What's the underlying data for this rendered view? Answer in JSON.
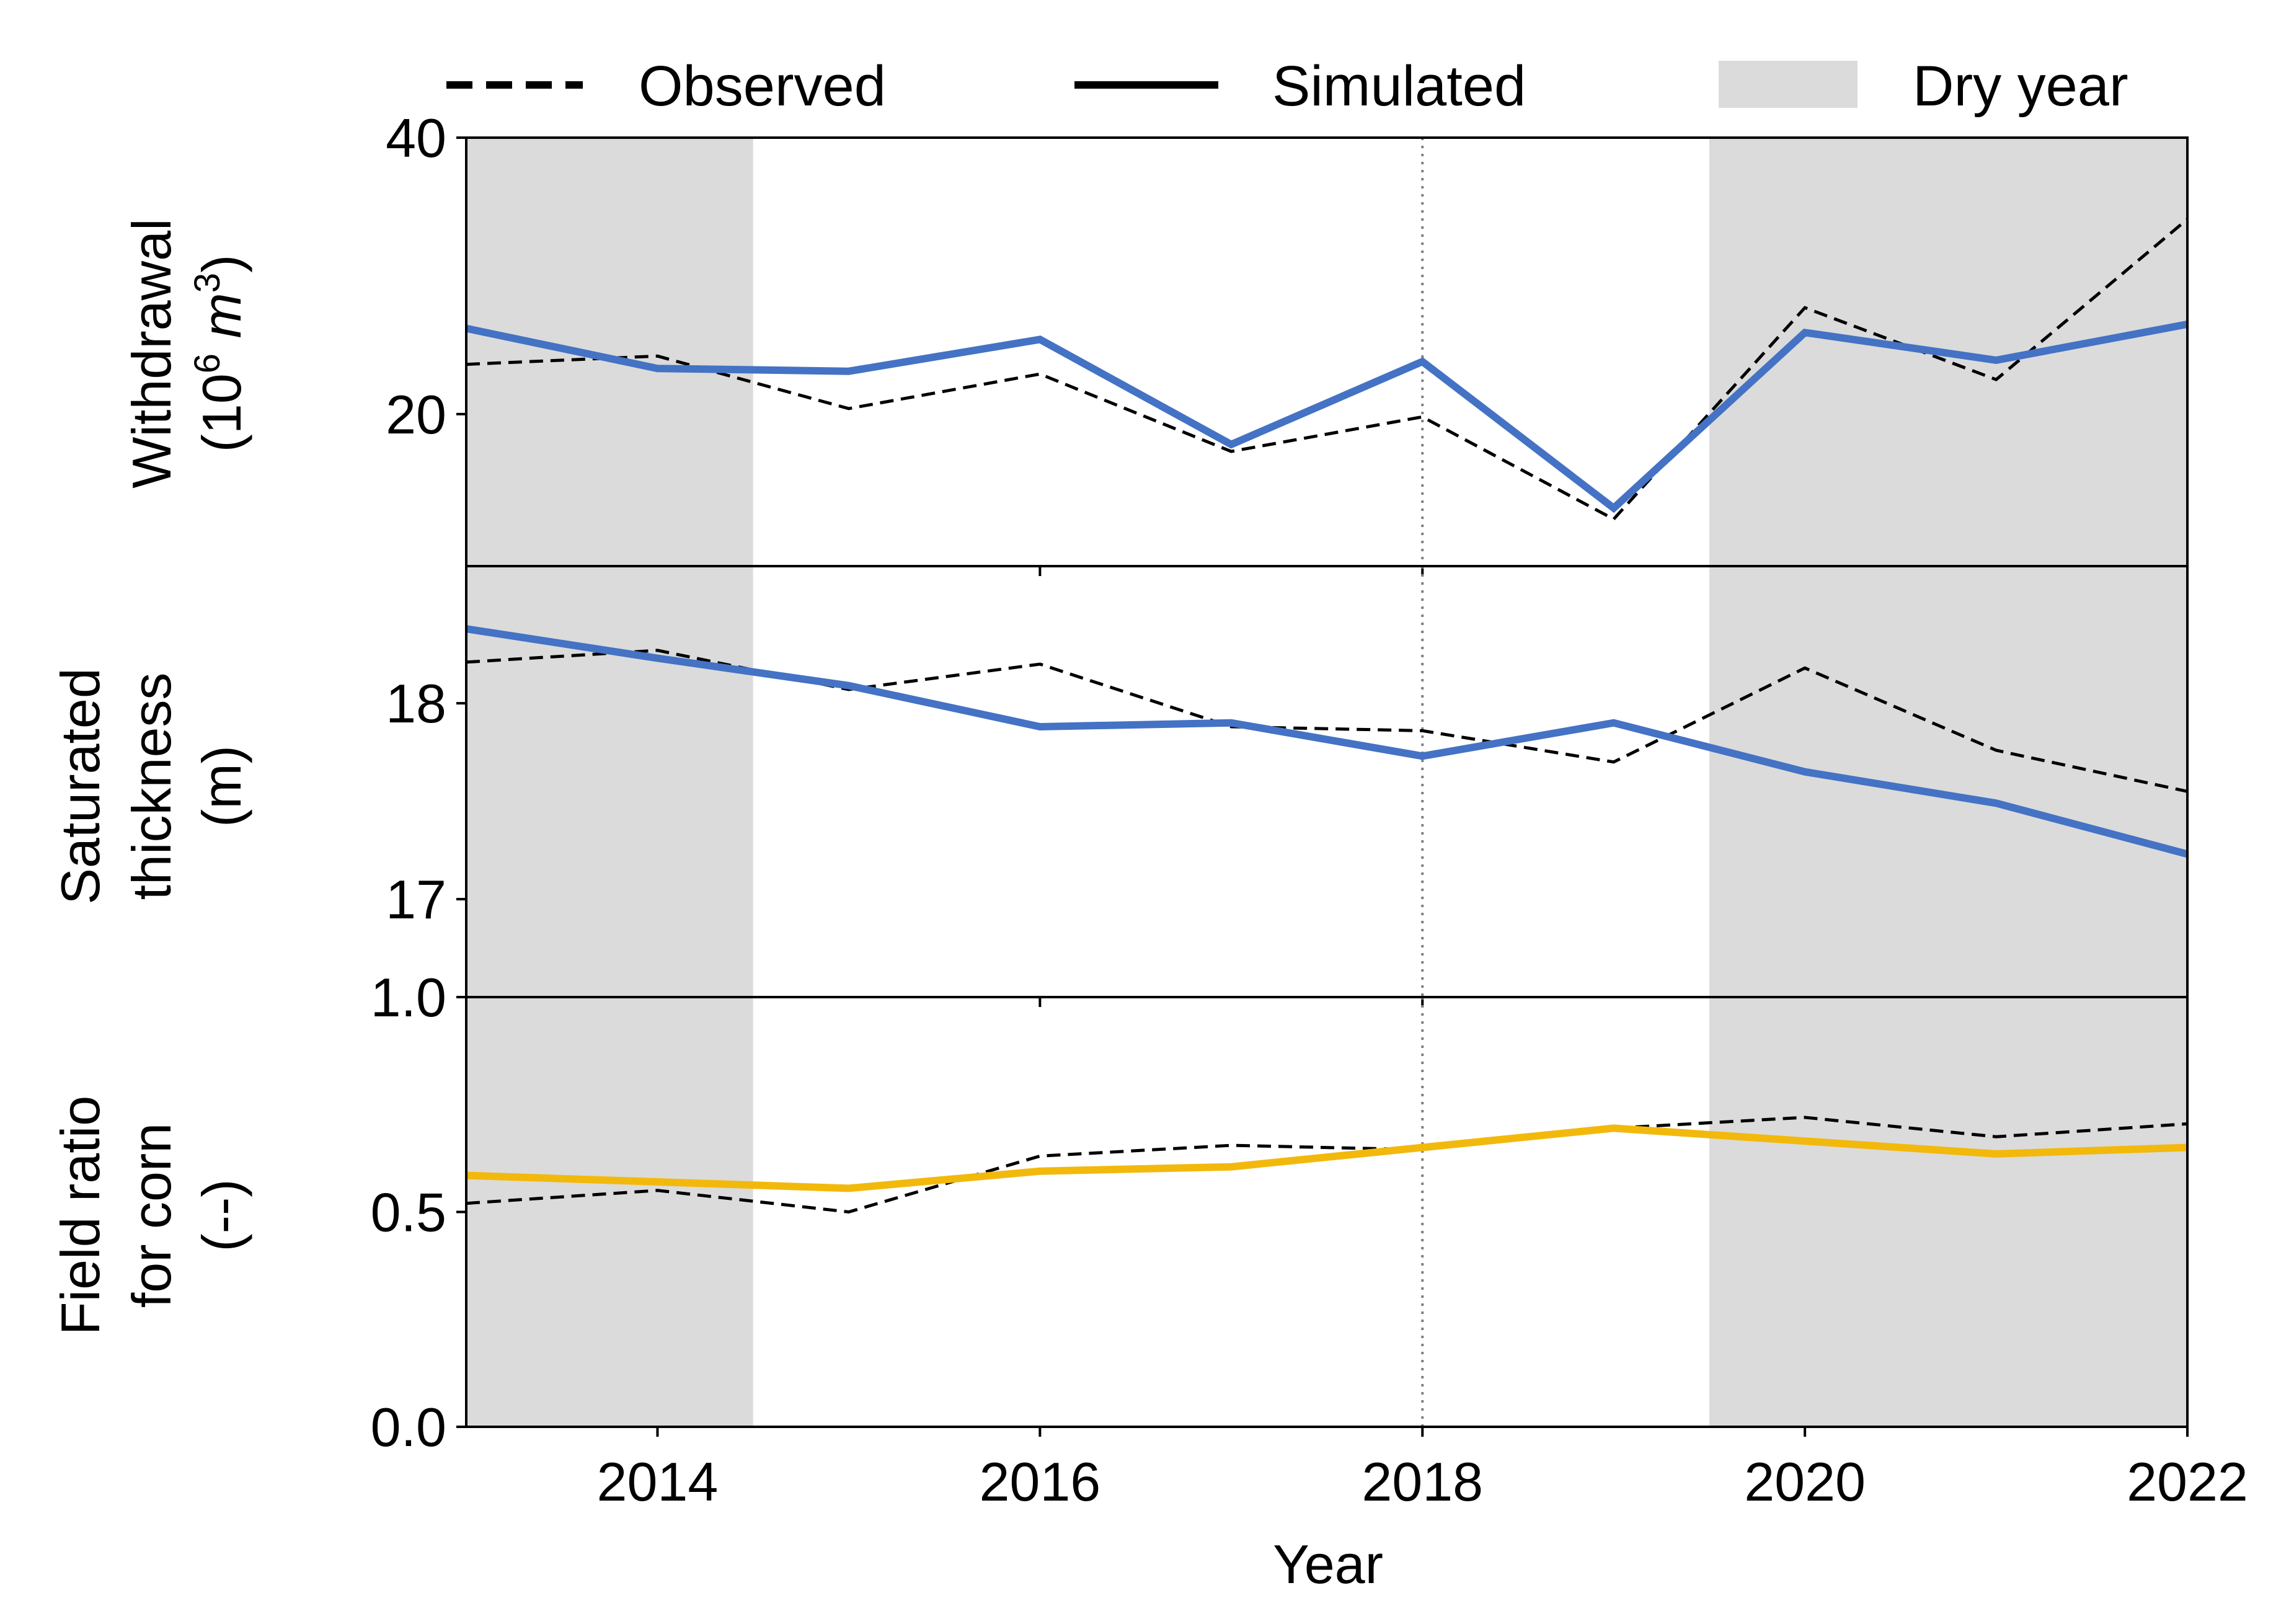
{
  "legend": {
    "observed": "Observed",
    "simulated": "Simulated",
    "dry_year": "Dry year"
  },
  "x_axis": {
    "label": "Year",
    "range": [
      2013,
      2022
    ],
    "ticks": [
      2014,
      2016,
      2018,
      2020,
      2022
    ]
  },
  "reference_line_year": 2018,
  "dry_periods": [
    [
      2013,
      2014.5
    ],
    [
      2019.5,
      2022
    ]
  ],
  "colors": {
    "dry_shade": "#dbdbdb",
    "simulated_blue": "#4472c4",
    "simulated_gold": "#f2b90c",
    "observed": "#000000",
    "reference_line": "#808080"
  },
  "chart_data": [
    {
      "type": "line",
      "ylabel_line1": "Withdrawal",
      "ylabel_line2_prefix": "(10",
      "ylabel_sup1": "6",
      "ylabel_unit": "m",
      "ylabel_sup2": "3",
      "ylabel_close": ")",
      "ylim": [
        9,
        40
      ],
      "yticks": [
        20,
        40
      ],
      "x": [
        2013,
        2014,
        2015,
        2016,
        2017,
        2018,
        2019,
        2020,
        2021,
        2022
      ],
      "series": [
        {
          "name": "Observed",
          "style": "dashed",
          "values": [
            23.6,
            24.2,
            20.4,
            22.9,
            17.3,
            19.8,
            12.4,
            27.7,
            22.5,
            34.1
          ]
        },
        {
          "name": "Simulated",
          "style": "solid",
          "values": [
            26.2,
            23.3,
            23.1,
            25.4,
            17.8,
            23.8,
            13.2,
            25.9,
            23.9,
            26.5
          ]
        }
      ]
    },
    {
      "type": "line",
      "ylabel_lines": [
        "Saturated",
        "thickness",
        "(m)"
      ],
      "ylim": [
        16.5,
        18.7
      ],
      "yticks": [
        17,
        18
      ],
      "x": [
        2013,
        2014,
        2015,
        2016,
        2017,
        2018,
        2019,
        2020,
        2021,
        2022
      ],
      "series": [
        {
          "name": "Observed",
          "style": "dashed",
          "values": [
            18.21,
            18.27,
            18.07,
            18.2,
            17.88,
            17.86,
            17.7,
            18.18,
            17.76,
            17.55
          ]
        },
        {
          "name": "Simulated",
          "style": "solid",
          "values": [
            18.38,
            18.23,
            18.09,
            17.88,
            17.9,
            17.73,
            17.9,
            17.65,
            17.49,
            17.23
          ]
        }
      ]
    },
    {
      "type": "line",
      "ylabel_lines": [
        "Field ratio",
        "for corn",
        "(--)"
      ],
      "ylim": [
        0.0,
        1.0
      ],
      "yticks": [
        "0.0",
        "0.5",
        "1.0"
      ],
      "x": [
        2013,
        2014,
        2015,
        2016,
        2017,
        2018,
        2019,
        2020,
        2021,
        2022
      ],
      "series": [
        {
          "name": "Observed",
          "style": "dashed",
          "values": [
            0.52,
            0.55,
            0.5,
            0.63,
            0.655,
            0.645,
            0.695,
            0.72,
            0.675,
            0.705
          ]
        },
        {
          "name": "Simulated",
          "style": "solid",
          "values": [
            0.585,
            0.57,
            0.555,
            0.595,
            0.605,
            0.65,
            0.695,
            0.665,
            0.635,
            0.65
          ]
        }
      ]
    }
  ]
}
